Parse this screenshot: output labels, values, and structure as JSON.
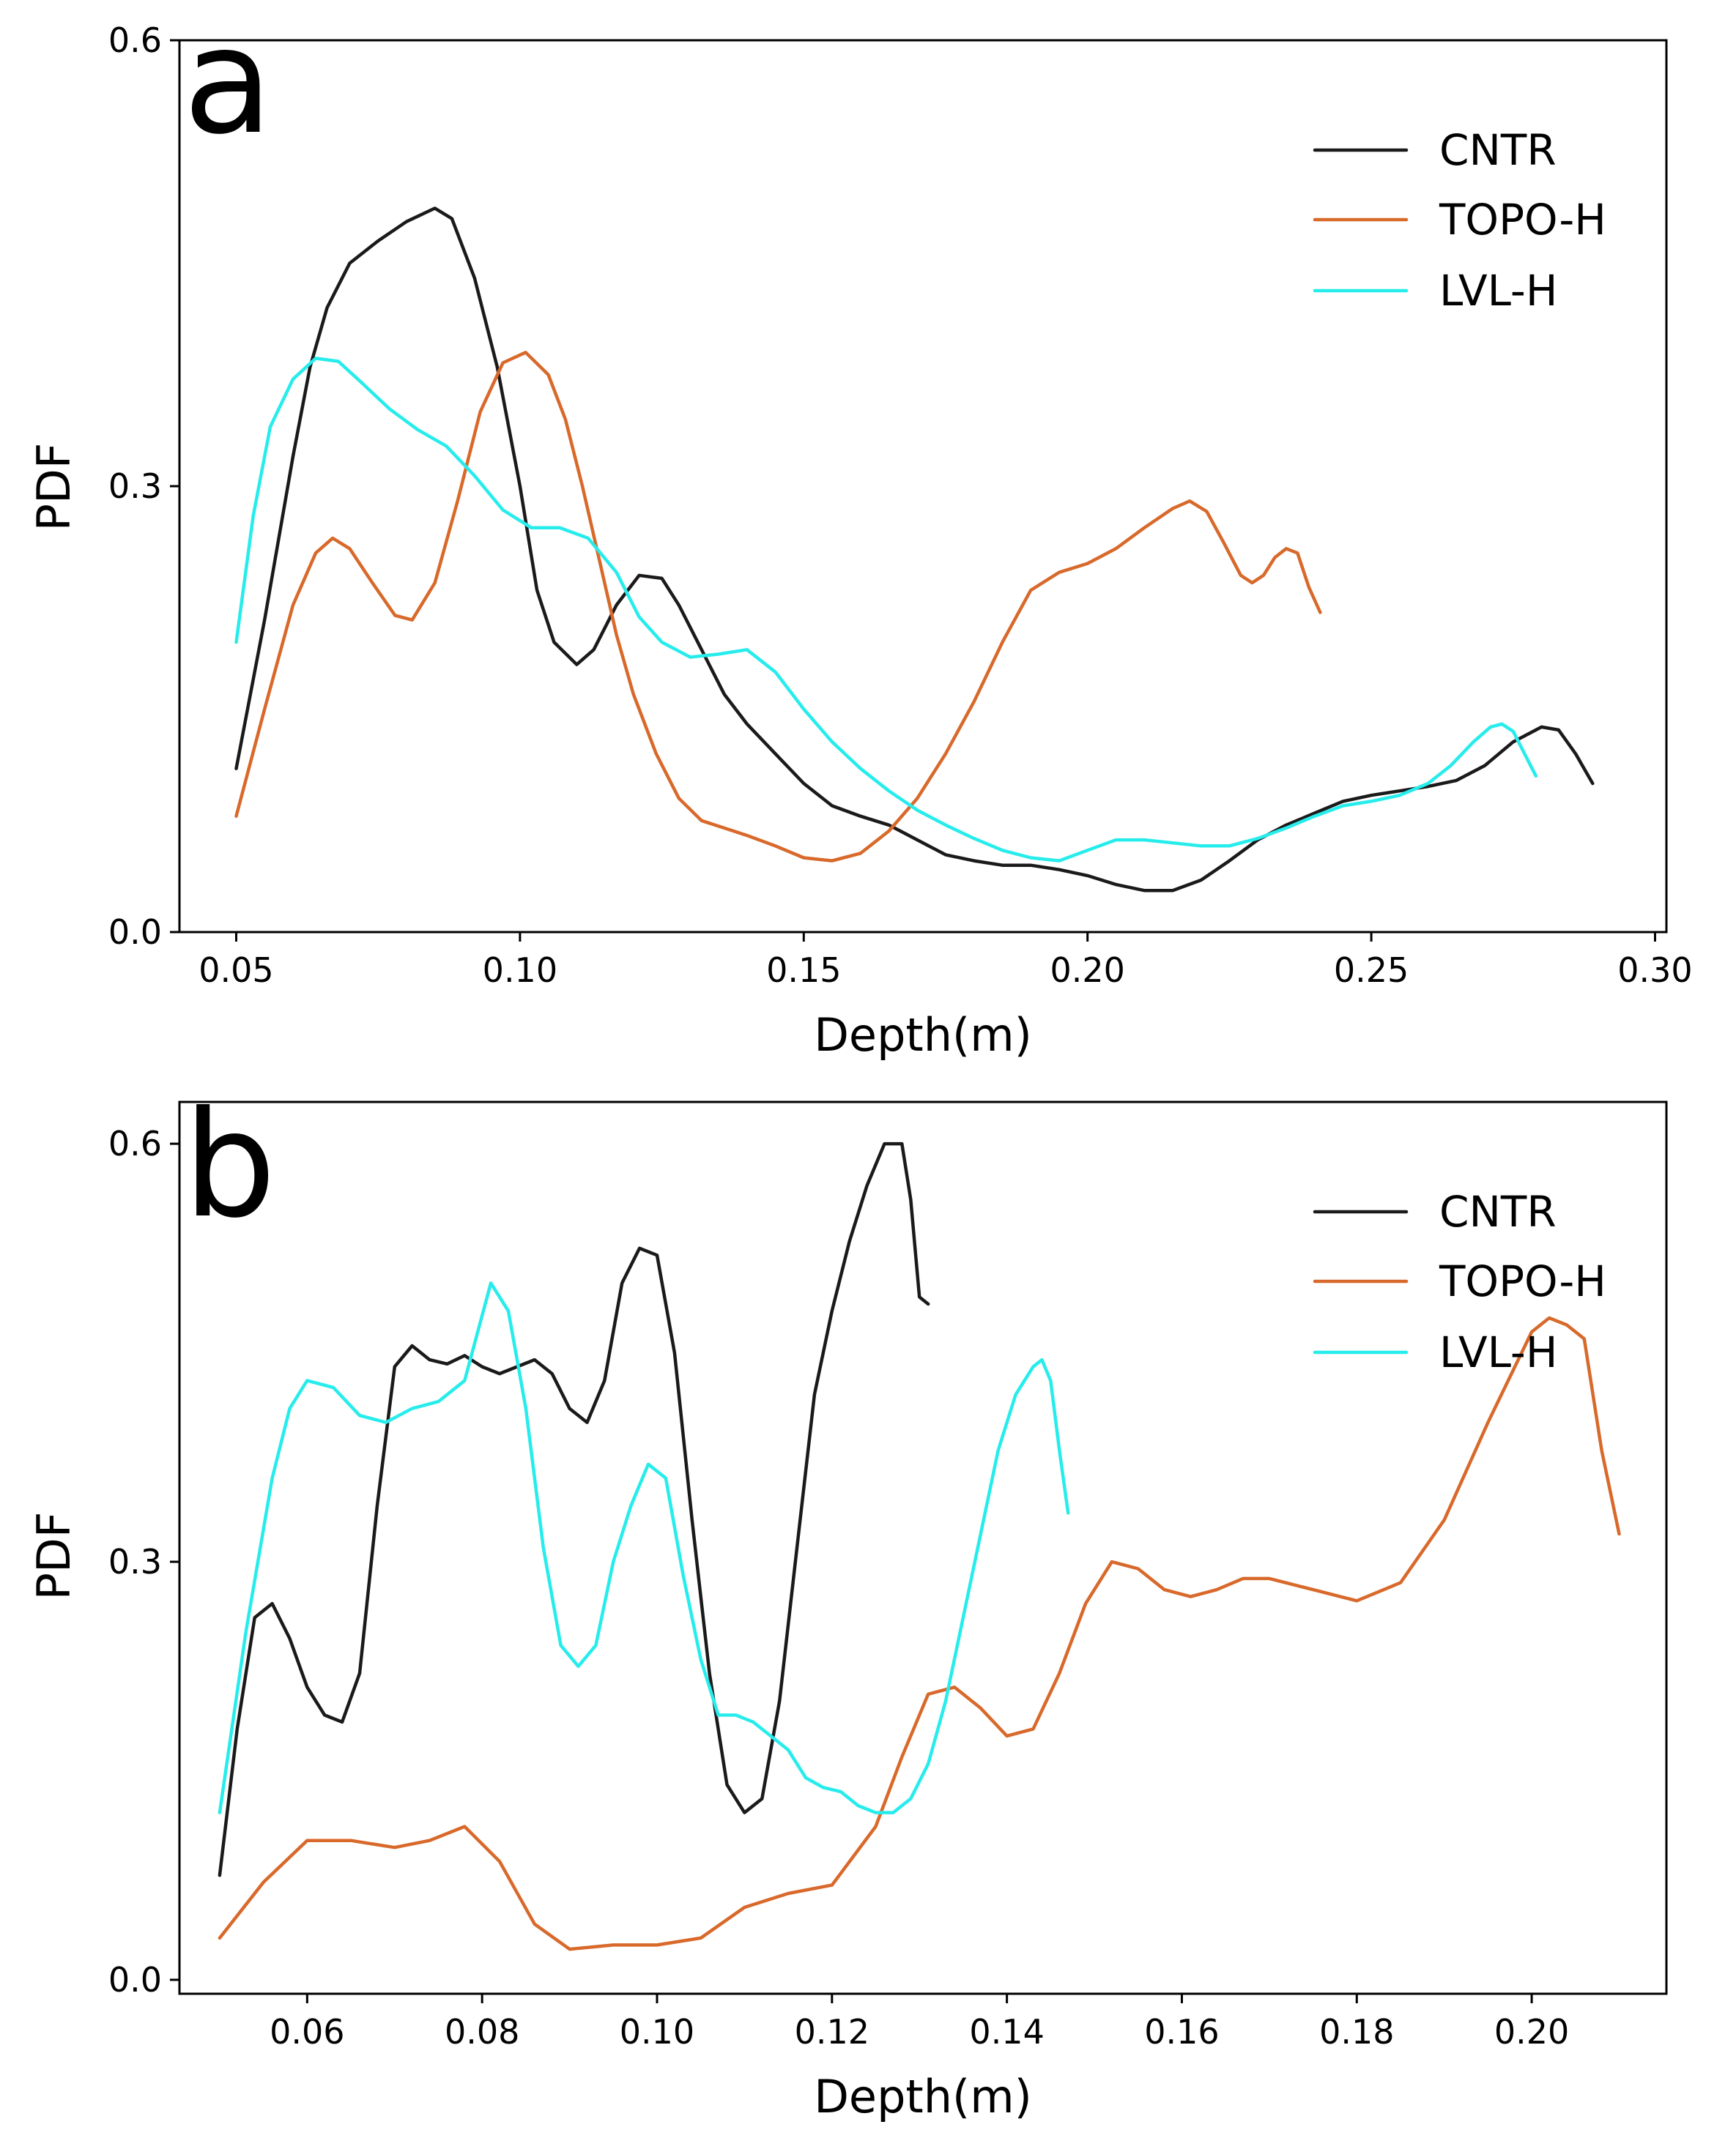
{
  "colors": {
    "CNTR": "#1a1a1a",
    "TOPO-H": "#d8692b",
    "LVL-H": "#27ecec"
  },
  "chart_data": [
    {
      "type": "line",
      "panel": "a",
      "xlabel": "Depth(m)",
      "ylabel": "PDF",
      "xlim": [
        0.04,
        0.302
      ],
      "ylim": [
        0.0,
        0.6
      ],
      "xticks": [
        0.05,
        0.1,
        0.15,
        0.2,
        0.25,
        0.3
      ],
      "xtick_labels": [
        "0.05",
        "0.10",
        "0.15",
        "0.20",
        "0.25",
        "0.30"
      ],
      "yticks": [
        0.0,
        0.3,
        0.6
      ],
      "ytick_labels": [
        "0.0",
        "0.3",
        "0.6"
      ],
      "legend_position": "top-right",
      "series": [
        {
          "name": "CNTR",
          "x": [
            0.05,
            0.055,
            0.06,
            0.063,
            0.066,
            0.07,
            0.075,
            0.08,
            0.085,
            0.088,
            0.092,
            0.096,
            0.1,
            0.103,
            0.106,
            0.11,
            0.113,
            0.117,
            0.121,
            0.125,
            0.128,
            0.132,
            0.136,
            0.14,
            0.145,
            0.15,
            0.155,
            0.16,
            0.165,
            0.17,
            0.175,
            0.18,
            0.185,
            0.19,
            0.195,
            0.2,
            0.205,
            0.21,
            0.215,
            0.22,
            0.225,
            0.23,
            0.235,
            0.24,
            0.245,
            0.25,
            0.255,
            0.26,
            0.265,
            0.27,
            0.275,
            0.28,
            0.283,
            0.286,
            0.289
          ],
          "y": [
            0.11,
            0.21,
            0.32,
            0.38,
            0.42,
            0.45,
            0.465,
            0.478,
            0.487,
            0.48,
            0.44,
            0.38,
            0.3,
            0.23,
            0.195,
            0.18,
            0.19,
            0.22,
            0.24,
            0.238,
            0.22,
            0.19,
            0.16,
            0.14,
            0.12,
            0.1,
            0.085,
            0.078,
            0.072,
            0.062,
            0.052,
            0.048,
            0.045,
            0.045,
            0.042,
            0.038,
            0.032,
            0.028,
            0.028,
            0.035,
            0.048,
            0.062,
            0.072,
            0.08,
            0.088,
            0.092,
            0.095,
            0.098,
            0.102,
            0.112,
            0.128,
            0.138,
            0.136,
            0.12,
            0.1
          ]
        },
        {
          "name": "TOPO-H",
          "x": [
            0.05,
            0.055,
            0.06,
            0.064,
            0.067,
            0.07,
            0.074,
            0.078,
            0.081,
            0.085,
            0.089,
            0.093,
            0.097,
            0.101,
            0.105,
            0.108,
            0.111,
            0.114,
            0.117,
            0.12,
            0.124,
            0.128,
            0.132,
            0.136,
            0.14,
            0.145,
            0.15,
            0.155,
            0.16,
            0.165,
            0.17,
            0.175,
            0.18,
            0.185,
            0.19,
            0.195,
            0.2,
            0.205,
            0.21,
            0.215,
            0.218,
            0.221,
            0.224,
            0.227,
            0.229,
            0.231,
            0.233,
            0.235,
            0.237,
            0.239,
            0.241
          ],
          "y": [
            0.078,
            0.15,
            0.22,
            0.255,
            0.265,
            0.258,
            0.235,
            0.213,
            0.21,
            0.235,
            0.29,
            0.35,
            0.383,
            0.39,
            0.375,
            0.345,
            0.3,
            0.25,
            0.2,
            0.16,
            0.12,
            0.09,
            0.075,
            0.07,
            0.065,
            0.058,
            0.05,
            0.048,
            0.053,
            0.068,
            0.09,
            0.12,
            0.155,
            0.195,
            0.23,
            0.242,
            0.248,
            0.258,
            0.272,
            0.285,
            0.29,
            0.283,
            0.262,
            0.24,
            0.235,
            0.24,
            0.252,
            0.258,
            0.255,
            0.232,
            0.215
          ]
        },
        {
          "name": "LVL-H",
          "x": [
            0.05,
            0.053,
            0.056,
            0.06,
            0.064,
            0.068,
            0.072,
            0.077,
            0.082,
            0.087,
            0.092,
            0.097,
            0.102,
            0.107,
            0.112,
            0.117,
            0.121,
            0.125,
            0.13,
            0.135,
            0.14,
            0.145,
            0.15,
            0.155,
            0.16,
            0.165,
            0.17,
            0.175,
            0.18,
            0.185,
            0.19,
            0.195,
            0.2,
            0.205,
            0.21,
            0.215,
            0.22,
            0.225,
            0.23,
            0.235,
            0.24,
            0.245,
            0.25,
            0.255,
            0.26,
            0.264,
            0.268,
            0.271,
            0.273,
            0.275,
            0.277,
            0.279
          ],
          "y": [
            0.195,
            0.28,
            0.34,
            0.372,
            0.386,
            0.384,
            0.37,
            0.352,
            0.338,
            0.327,
            0.307,
            0.284,
            0.272,
            0.272,
            0.265,
            0.242,
            0.212,
            0.195,
            0.185,
            0.187,
            0.19,
            0.175,
            0.15,
            0.128,
            0.11,
            0.095,
            0.082,
            0.072,
            0.063,
            0.055,
            0.05,
            0.048,
            0.055,
            0.062,
            0.062,
            0.06,
            0.058,
            0.058,
            0.063,
            0.07,
            0.078,
            0.085,
            0.088,
            0.092,
            0.1,
            0.112,
            0.128,
            0.138,
            0.14,
            0.135,
            0.12,
            0.105
          ]
        }
      ]
    },
    {
      "type": "line",
      "panel": "b",
      "xlabel": "Depth(m)",
      "ylabel": "PDF",
      "xlim": [
        0.0454,
        0.2154
      ],
      "ylim": [
        -0.01,
        0.63
      ],
      "xticks": [
        0.06,
        0.08,
        0.1,
        0.12,
        0.14,
        0.16,
        0.18,
        0.2
      ],
      "xtick_labels": [
        "0.06",
        "0.08",
        "0.10",
        "0.12",
        "0.14",
        "0.16",
        "0.18",
        "0.20"
      ],
      "yticks": [
        0.0,
        0.3,
        0.6
      ],
      "ytick_labels": [
        "0.0",
        "0.3",
        "0.6"
      ],
      "legend_position": "top-right",
      "series": [
        {
          "name": "CNTR",
          "x": [
            0.05,
            0.052,
            0.054,
            0.056,
            0.058,
            0.06,
            0.062,
            0.064,
            0.066,
            0.068,
            0.07,
            0.072,
            0.074,
            0.076,
            0.078,
            0.08,
            0.082,
            0.084,
            0.086,
            0.088,
            0.09,
            0.092,
            0.094,
            0.096,
            0.098,
            0.1,
            0.102,
            0.104,
            0.106,
            0.108,
            0.11,
            0.112,
            0.114,
            0.116,
            0.118,
            0.12,
            0.122,
            0.124,
            0.126,
            0.128,
            0.129,
            0.13,
            0.131
          ],
          "y": [
            0.075,
            0.18,
            0.26,
            0.27,
            0.245,
            0.21,
            0.19,
            0.185,
            0.22,
            0.34,
            0.44,
            0.455,
            0.445,
            0.442,
            0.448,
            0.44,
            0.435,
            0.44,
            0.445,
            0.435,
            0.41,
            0.4,
            0.43,
            0.5,
            0.525,
            0.52,
            0.45,
            0.33,
            0.22,
            0.14,
            0.12,
            0.13,
            0.2,
            0.31,
            0.42,
            0.48,
            0.53,
            0.57,
            0.6,
            0.6,
            0.56,
            0.49,
            0.485
          ]
        },
        {
          "name": "TOPO-H",
          "x": [
            0.05,
            0.055,
            0.06,
            0.065,
            0.07,
            0.074,
            0.078,
            0.082,
            0.086,
            0.09,
            0.095,
            0.1,
            0.105,
            0.11,
            0.115,
            0.12,
            0.125,
            0.128,
            0.131,
            0.134,
            0.137,
            0.14,
            0.143,
            0.146,
            0.149,
            0.152,
            0.155,
            0.158,
            0.161,
            0.164,
            0.167,
            0.17,
            0.175,
            0.18,
            0.185,
            0.19,
            0.195,
            0.2,
            0.202,
            0.204,
            0.206,
            0.208,
            0.21
          ],
          "y": [
            0.03,
            0.07,
            0.1,
            0.1,
            0.095,
            0.1,
            0.11,
            0.085,
            0.04,
            0.022,
            0.025,
            0.025,
            0.03,
            0.052,
            0.062,
            0.068,
            0.11,
            0.16,
            0.205,
            0.21,
            0.195,
            0.175,
            0.18,
            0.22,
            0.27,
            0.3,
            0.295,
            0.28,
            0.275,
            0.28,
            0.288,
            0.288,
            0.28,
            0.272,
            0.285,
            0.33,
            0.4,
            0.465,
            0.475,
            0.47,
            0.46,
            0.38,
            0.32
          ]
        },
        {
          "name": "LVL-H",
          "x": [
            0.05,
            0.053,
            0.056,
            0.058,
            0.06,
            0.063,
            0.066,
            0.069,
            0.072,
            0.075,
            0.078,
            0.081,
            0.083,
            0.085,
            0.087,
            0.089,
            0.091,
            0.093,
            0.095,
            0.097,
            0.099,
            0.101,
            0.103,
            0.105,
            0.107,
            0.109,
            0.111,
            0.113,
            0.115,
            0.117,
            0.119,
            0.121,
            0.123,
            0.125,
            0.127,
            0.129,
            0.131,
            0.133,
            0.135,
            0.137,
            0.139,
            0.141,
            0.143,
            0.144,
            0.145,
            0.146,
            0.147
          ],
          "y": [
            0.12,
            0.25,
            0.36,
            0.41,
            0.43,
            0.425,
            0.405,
            0.4,
            0.41,
            0.415,
            0.43,
            0.5,
            0.48,
            0.41,
            0.31,
            0.24,
            0.225,
            0.24,
            0.3,
            0.34,
            0.37,
            0.36,
            0.29,
            0.23,
            0.19,
            0.19,
            0.185,
            0.175,
            0.165,
            0.145,
            0.138,
            0.135,
            0.125,
            0.12,
            0.12,
            0.13,
            0.155,
            0.2,
            0.26,
            0.32,
            0.38,
            0.42,
            0.44,
            0.445,
            0.43,
            0.38,
            0.335
          ]
        }
      ]
    }
  ]
}
